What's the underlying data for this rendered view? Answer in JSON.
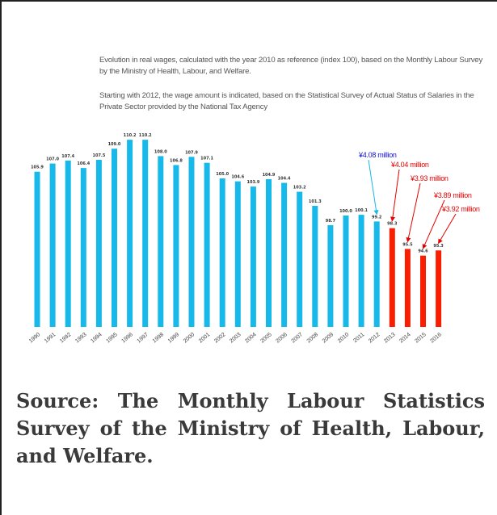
{
  "description_1": "Evolution in real wages, calculated with the year 2010 as reference (index 100), based on the Monthly Labour Survey by the Ministry of Health, Labour, and Welfare.",
  "description_2": "Starting with 2012, the wage amount is indicated, based on the Statistical Survey of Actual Status of Salaries in the Private Sector provided by the National Tax Agency",
  "caption": "Source: The Monthly Labour Statistics Survey of the Ministry of Health, Labour, and Welfare.",
  "colors": {
    "blue": "#17b8ea",
    "red": "#fa1e00",
    "blue_annotation": "#1010d8",
    "red_annotation": "#e60000"
  },
  "chart_data": {
    "type": "bar",
    "categories": [
      "1990",
      "1991",
      "1992",
      "1993",
      "1994",
      "1995",
      "1996",
      "1997",
      "1998",
      "1999",
      "2000",
      "2001",
      "2002",
      "2003",
      "2004",
      "2005",
      "2006",
      "2007",
      "2008",
      "2009",
      "2010",
      "2011",
      "2012",
      "2013",
      "2014",
      "2015",
      "2016"
    ],
    "values": [
      105.9,
      107.0,
      107.4,
      106.4,
      107.5,
      109.0,
      110.2,
      110.2,
      108.0,
      106.8,
      107.9,
      107.1,
      105.0,
      104.6,
      103.9,
      104.9,
      104.4,
      103.2,
      101.3,
      98.7,
      100.0,
      100.1,
      99.2,
      98.3,
      95.5,
      94.6,
      95.3
    ],
    "value_labels": [
      "105.9",
      "107.0",
      "107.4",
      "106.4",
      "107.5",
      "109.0",
      "110.2",
      "110.2",
      "108.0",
      "106.8",
      "107.9",
      "107.1",
      "105.0",
      "104.6",
      "103.9",
      "104.9",
      "104.4",
      "103.2",
      "101.3",
      "98.7",
      "100.0",
      "100.1",
      "99.2",
      "98.3",
      "95.5",
      "94.6",
      "95.3"
    ],
    "bar_colors": [
      "blue",
      "blue",
      "blue",
      "blue",
      "blue",
      "blue",
      "blue",
      "blue",
      "blue",
      "blue",
      "blue",
      "blue",
      "blue",
      "blue",
      "blue",
      "blue",
      "blue",
      "blue",
      "blue",
      "blue",
      "blue",
      "blue",
      "blue",
      "red",
      "red",
      "red",
      "red"
    ],
    "ylim": [
      85,
      110
    ],
    "yticks": [
      85,
      90,
      95,
      100,
      105,
      110
    ],
    "ytick_labels": [
      "85.0",
      "90.0",
      "95.0",
      "100.0",
      "105.0",
      "110.0"
    ],
    "grid": false,
    "annotations": [
      {
        "text": "¥4.08 million",
        "color": "blue_annotation",
        "category": "2012"
      },
      {
        "text": "¥4.04 million",
        "color": "red_annotation",
        "category": "2013"
      },
      {
        "text": "¥3.93 million",
        "color": "red_annotation",
        "category": "2014"
      },
      {
        "text": "¥3.89 million",
        "color": "red_annotation",
        "category": "2015"
      },
      {
        "text": "¥3.92 million",
        "color": "red_annotation",
        "category": "2016"
      }
    ]
  }
}
